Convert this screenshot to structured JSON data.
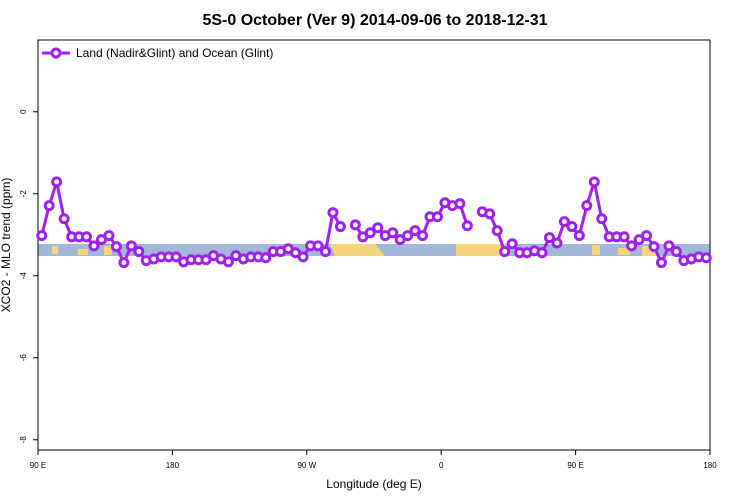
{
  "chart_data": {
    "type": "line",
    "title": "5S-0 October (Ver 9)   2014-09-06 to 2018-12-31",
    "x_label": "Longitude (deg E)",
    "y_label": "XCO2 - MLO trend (ppm)",
    "xlim": [
      90,
      540
    ],
    "ylim": [
      -8.25,
      1.75
    ],
    "xticks": [
      {
        "value": 90,
        "label": "90 E"
      },
      {
        "value": 180,
        "label": "180"
      },
      {
        "value": 270,
        "label": "90 W"
      },
      {
        "value": 360,
        "label": "0"
      },
      {
        "value": 450,
        "label": "90 E"
      },
      {
        "value": 540,
        "label": "180"
      }
    ],
    "yticks": [
      0,
      -2,
      -4,
      -6,
      -8
    ],
    "legend": "top-left",
    "x": [
      92.5,
      97.5,
      102.5,
      107.5,
      112.5,
      117.5,
      122.5,
      127.5,
      132.5,
      137.5,
      142.5,
      147.5,
      152.5,
      157.5,
      162.5,
      167.5,
      172.5,
      177.5,
      182.5,
      187.5,
      192.5,
      197.5,
      202.5,
      207.5,
      212.5,
      217.5,
      222.5,
      227.5,
      232.5,
      237.5,
      242.5,
      247.5,
      252.5,
      257.5,
      262.5,
      267.5,
      272.5,
      277.5,
      282.5,
      287.5,
      292.5,
      297.5,
      302.5,
      307.5,
      312.5,
      317.5,
      322.5,
      327.5,
      332.5,
      337.5,
      342.5,
      347.5,
      352.5,
      357.5,
      362.5,
      367.5,
      372.5,
      377.5,
      382.5,
      387.5,
      392.5,
      397.5,
      402.5,
      407.5,
      412.5,
      417.5,
      422.5,
      427.5,
      432.5,
      437.5,
      442.5,
      447.5,
      452.5,
      457.5,
      462.5,
      467.5,
      472.5,
      477.5,
      482.5,
      487.5,
      492.5,
      497.5,
      502.5,
      507.5,
      512.5,
      517.5,
      522.5,
      527.5,
      532.5,
      537.5
    ],
    "series": [
      {
        "name": "Land (Nadir&Glint) and Ocean (Glint)",
        "color": "#a020f0",
        "values": [
          -3.02,
          -2.29,
          -1.71,
          -2.61,
          -3.05,
          -3.05,
          -3.05,
          -3.27,
          -3.12,
          -3.02,
          -3.29,
          -3.68,
          -3.27,
          -3.41,
          -3.63,
          -3.59,
          -3.54,
          -3.54,
          -3.54,
          -3.66,
          -3.61,
          -3.61,
          -3.61,
          -3.51,
          -3.59,
          -3.66,
          -3.51,
          -3.59,
          -3.54,
          -3.54,
          -3.56,
          -3.41,
          -3.41,
          -3.34,
          -3.44,
          -3.54,
          -3.27,
          -3.27,
          -3.41,
          -2.46,
          -2.8,
          null,
          -2.76,
          -3.05,
          -2.95,
          -2.83,
          -3.02,
          -2.95,
          -3.12,
          -3.02,
          -2.9,
          -3.02,
          -2.56,
          -2.56,
          -2.22,
          -2.29,
          -2.24,
          -2.78,
          null,
          -2.44,
          -2.49,
          -2.9,
          -3.41,
          -3.22,
          -3.44,
          -3.44,
          -3.39,
          -3.44,
          -3.07,
          -3.2,
          -2.68,
          -2.8,
          -3.02,
          -2.29,
          -1.71,
          -2.61,
          -3.05,
          -3.05,
          -3.05,
          -3.27,
          -3.12,
          -3.02,
          -3.29,
          -3.68,
          -3.27,
          -3.41,
          -3.63,
          -3.59,
          -3.54,
          -3.56
        ]
      }
    ]
  }
}
